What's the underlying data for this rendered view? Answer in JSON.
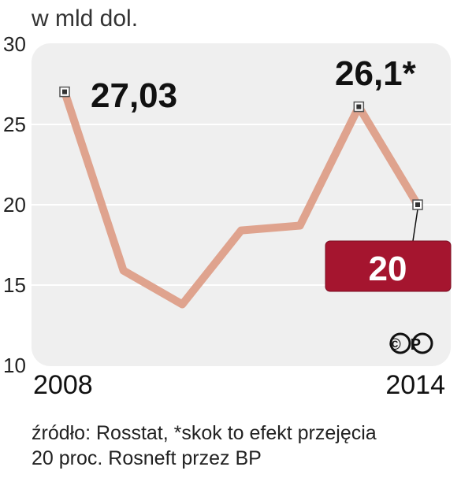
{
  "chart_data": {
    "type": "line",
    "unit_label": "w mld dol.",
    "x_start_label": "2008",
    "x_end_label": "2014",
    "x": [
      2008,
      2009,
      2010,
      2011,
      2012,
      2013,
      2014
    ],
    "values": [
      27.03,
      15.9,
      13.8,
      18.4,
      18.7,
      26.1,
      20
    ],
    "ylim": [
      10,
      30
    ],
    "yticks": [
      "30",
      "25",
      "20",
      "15",
      "10"
    ],
    "annotations": {
      "first": "27,03",
      "peak": "26,1*",
      "last": "20"
    },
    "source_lines": [
      "źródło: Rosstat, *skok to efekt przejęcia",
      "20 proc. Rosneft przez BP"
    ],
    "copyright_mark": "©P",
    "colors": {
      "line": "#dfa38e",
      "plot_bg": "#efefef",
      "highlight_box": "#a5152f",
      "grid": "#ffffff"
    }
  }
}
